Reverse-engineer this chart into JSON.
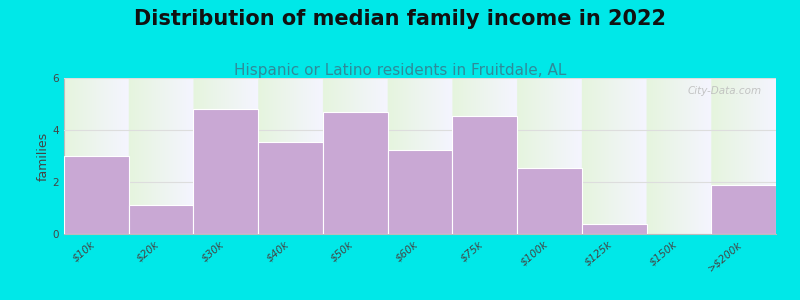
{
  "title": "Distribution of median family income in 2022",
  "subtitle": "Hispanic or Latino residents in Fruitdale, AL",
  "ylabel": "families",
  "categories": [
    "$10k",
    "$20k",
    "$30k",
    "$40k",
    "$50k",
    "$60k",
    "$75k",
    "$100k",
    "$125k",
    "$150k",
    ">$200k"
  ],
  "values": [
    3.0,
    1.1,
    4.8,
    3.55,
    4.7,
    3.25,
    4.55,
    2.55,
    0.4,
    0.0,
    1.9
  ],
  "bar_color": "#c9a8d4",
  "ylim": [
    0,
    6
  ],
  "yticks": [
    0,
    2,
    4,
    6
  ],
  "background_color": "#00e8e8",
  "plot_bg_top": "#e6f4e2",
  "plot_bg_bottom": "#f5f5ff",
  "title_fontsize": 15,
  "subtitle_fontsize": 11,
  "ylabel_fontsize": 9,
  "tick_fontsize": 7.5,
  "watermark": "City-Data.com"
}
